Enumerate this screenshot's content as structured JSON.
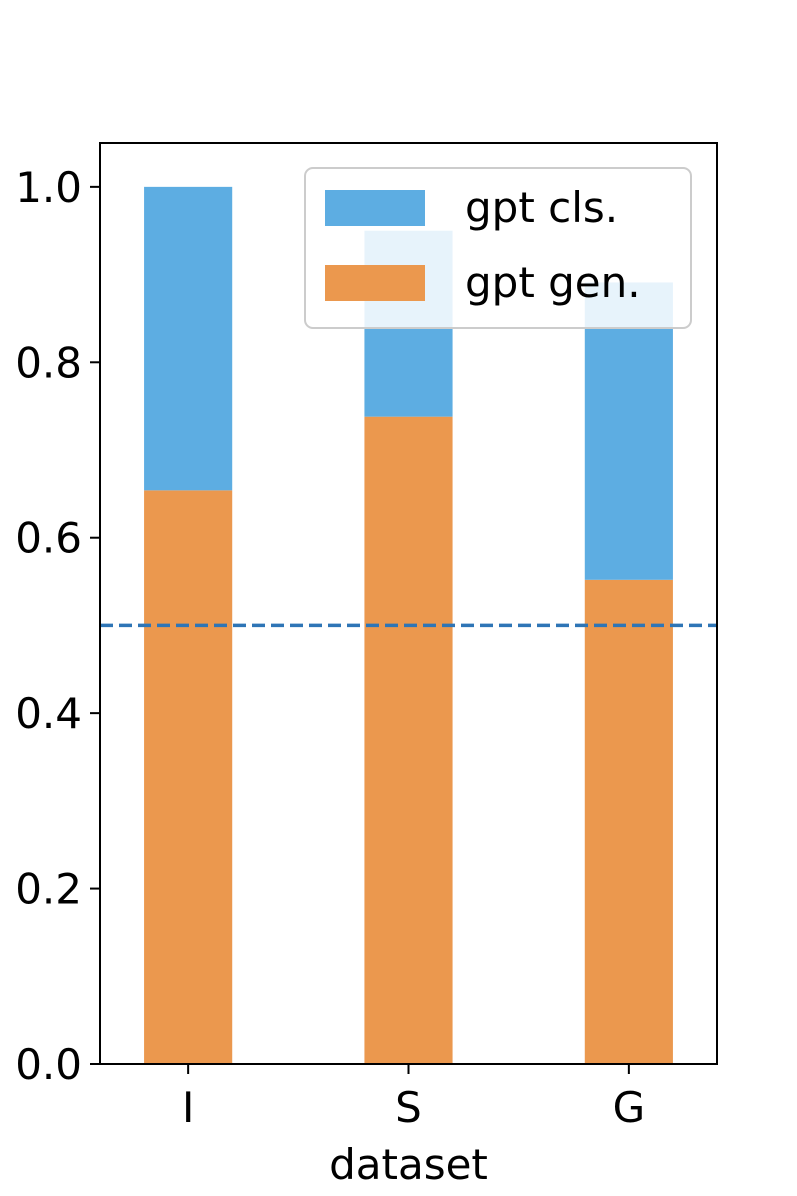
{
  "chart_data": {
    "type": "bar",
    "stacked": true,
    "categories": [
      "I",
      "S",
      "G"
    ],
    "series": [
      {
        "name": "gpt cls.",
        "values": [
          0.346,
          0.212,
          0.339
        ],
        "color": "#5DADE2"
      },
      {
        "name": "gpt gen.",
        "values": [
          0.654,
          0.738,
          0.552
        ],
        "color": "#EB984E"
      }
    ],
    "title": "",
    "xlabel": "dataset",
    "ylabel": "",
    "ylim": [
      0,
      1.05
    ],
    "yticks": [
      {
        "value": 0.0,
        "label": "0.0"
      },
      {
        "value": 0.2,
        "label": "0.2"
      },
      {
        "value": 0.4,
        "label": "0.4"
      },
      {
        "value": 0.6,
        "label": "0.6"
      },
      {
        "value": 0.8,
        "label": "0.8"
      },
      {
        "value": 1.0,
        "label": "1.0"
      }
    ],
    "reference_line": {
      "value": 0.5,
      "style": "dashed",
      "color": "#2E75B6"
    },
    "grid": false,
    "legend_position": "top-right"
  }
}
